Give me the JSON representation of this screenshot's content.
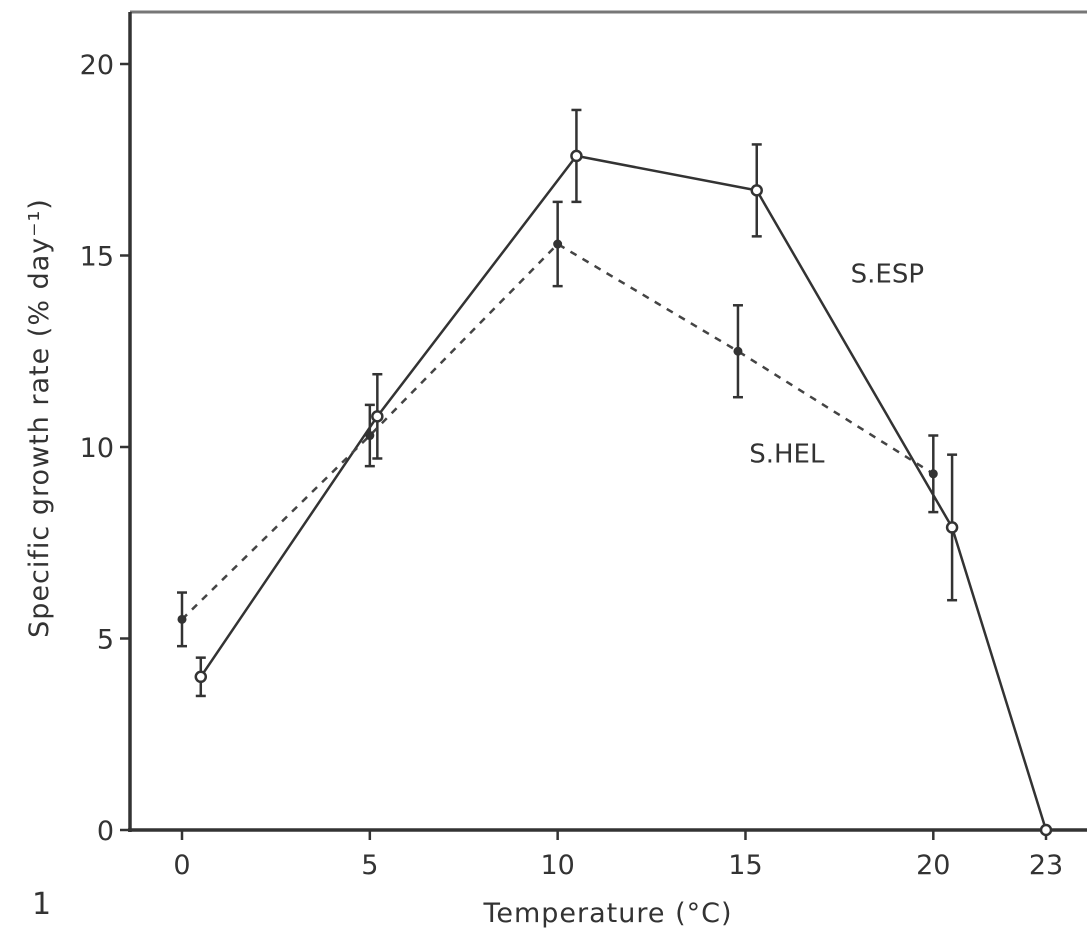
{
  "panel_label": "1",
  "chart_data": {
    "type": "line",
    "title": "",
    "xlabel": "Temperature (°C)",
    "ylabel": "Specific growth rate (% day⁻¹)",
    "xlim": [
      -1.5,
      25
    ],
    "ylim": [
      0,
      21.5
    ],
    "x_ticks": [
      0,
      5,
      10,
      15,
      20,
      23
    ],
    "x_tick_labels": [
      "0",
      "5",
      "10",
      "15",
      "20",
      "23"
    ],
    "y_ticks": [
      0,
      5,
      10,
      15,
      20
    ],
    "y_tick_labels": [
      "0",
      "5",
      "10",
      "15",
      "20"
    ],
    "grid": false,
    "series": [
      {
        "name": "S.ESP",
        "style": "solid",
        "marker": "open",
        "label_at": [
          17.8,
          14.3
        ],
        "points": [
          {
            "x": 0.5,
            "y": 4.0,
            "err": 0.5
          },
          {
            "x": 5.2,
            "y": 10.8,
            "err": 1.1
          },
          {
            "x": 10.5,
            "y": 17.6,
            "err": 1.2
          },
          {
            "x": 15.3,
            "y": 16.7,
            "err": 1.2
          },
          {
            "x": 20.5,
            "y": 7.9,
            "err": 1.9
          },
          {
            "x": 23.0,
            "y": 0.0,
            "err": 0
          }
        ]
      },
      {
        "name": "S.HEL",
        "style": "dashed",
        "marker": "filled",
        "label_at": [
          15.1,
          9.6
        ],
        "points": [
          {
            "x": 0.0,
            "y": 5.5,
            "err": 0.7
          },
          {
            "x": 5.0,
            "y": 10.3,
            "err": 0.8
          },
          {
            "x": 10.0,
            "y": 15.3,
            "err": 1.1
          },
          {
            "x": 14.8,
            "y": 12.5,
            "err": 1.2
          },
          {
            "x": 20.0,
            "y": 9.3,
            "err": 1.0
          }
        ]
      }
    ]
  }
}
